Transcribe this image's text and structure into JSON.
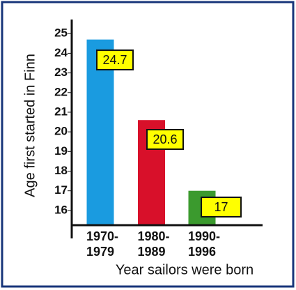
{
  "chart_data": {
    "type": "bar",
    "y_label": "Age first started in Finn",
    "x_label": "Year sailors were born",
    "categories": [
      [
        "1970-",
        "1979"
      ],
      [
        "1980-",
        "1989"
      ],
      [
        "1990-",
        "1996"
      ]
    ],
    "values": [
      24.7,
      20.6,
      17
    ],
    "colors": [
      "#1a9be0",
      "#d8102a",
      "#3b9a2e"
    ],
    "ylim": [
      15.25,
      25.7
    ],
    "yticks": [
      16,
      17,
      18,
      19,
      20,
      21,
      22,
      23,
      24,
      25
    ]
  }
}
